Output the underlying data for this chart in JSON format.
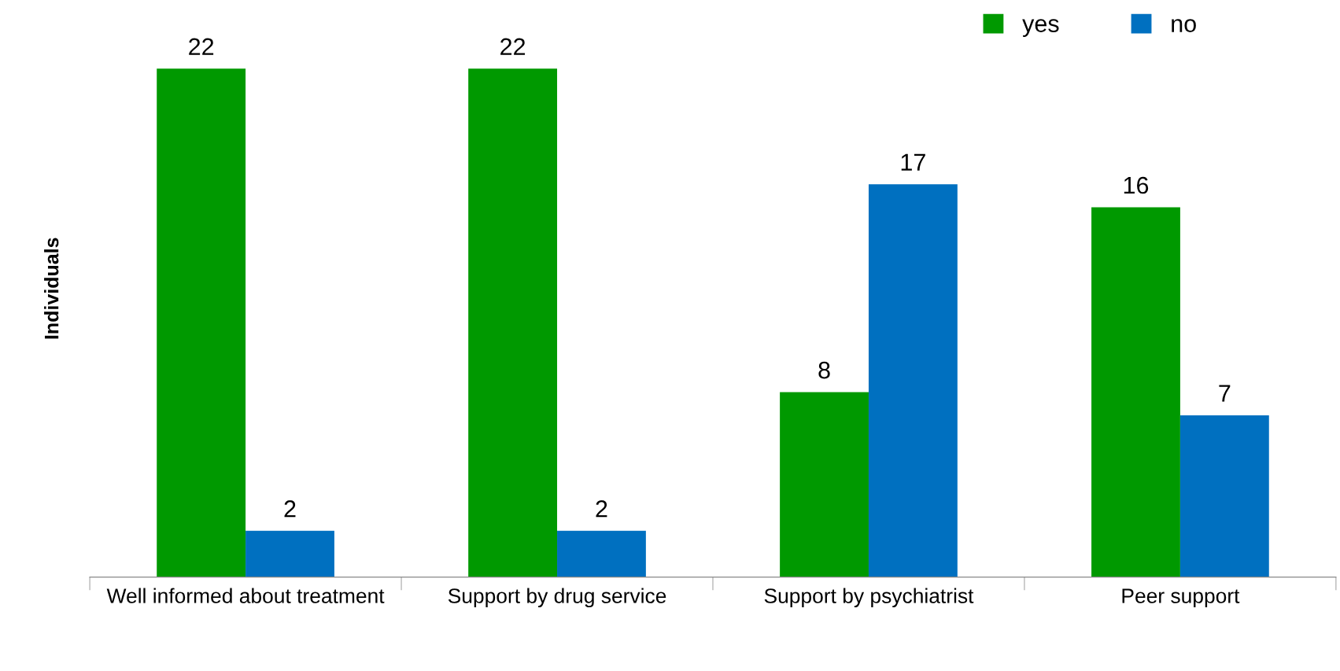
{
  "chart_data": {
    "type": "bar",
    "ylabel": "Individuals",
    "categories": [
      "Well informed about treatment",
      "Support by drug service",
      "Support by psychiatrist",
      "Peer support"
    ],
    "series": [
      {
        "name": "yes",
        "color": "#009900",
        "values": [
          22,
          22,
          8,
          16
        ]
      },
      {
        "name": "no",
        "color": "#0070c0",
        "values": [
          2,
          2,
          17,
          7
        ]
      }
    ],
    "data_labels": true,
    "legend": "top right",
    "grid": false,
    "tick_labels": "x"
  }
}
